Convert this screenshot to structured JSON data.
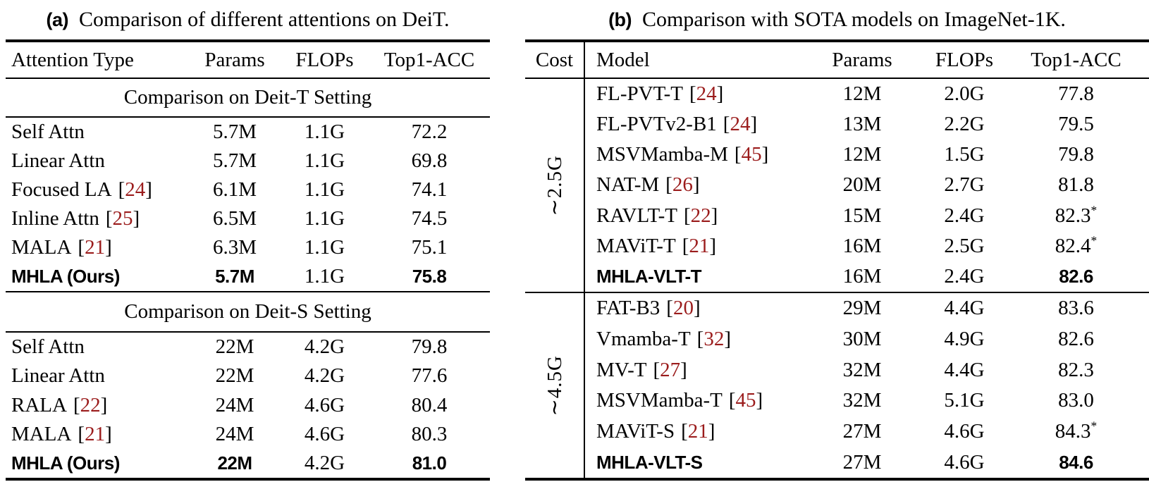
{
  "page": {
    "background": "#ffffff",
    "text_color": "#000000",
    "citation_color": "#9b1c1c"
  },
  "table_a": {
    "label": "(a)",
    "caption": "Comparison of different attentions on DeiT.",
    "columns": [
      "Attention Type",
      "Params",
      "FLOPs",
      "Top1-ACC"
    ],
    "sections": [
      {
        "title": "Comparison on Deit-T Setting",
        "rows": [
          {
            "name": "Self Attn",
            "params": "5.7M",
            "flops": "1.1G",
            "acc": "72.2"
          },
          {
            "name": "Linear Attn",
            "params": "5.7M",
            "flops": "1.1G",
            "acc": "69.8"
          },
          {
            "name": "Focused LA",
            "br_l": "[",
            "cite": "24",
            "br_r": "]",
            "params": "6.1M",
            "flops": "1.1G",
            "acc": "74.1"
          },
          {
            "name": "Inline Attn",
            "br_l": "[",
            "cite": "25",
            "br_r": "]",
            "params": "6.5M",
            "flops": "1.1G",
            "acc": "74.5"
          },
          {
            "name": "MALA",
            "br_l": "[",
            "cite": "21",
            "br_r": "]",
            "params": "6.3M",
            "flops": "1.1G",
            "acc": "75.1"
          },
          {
            "name": "MHLA (Ours)",
            "params": "5.7M",
            "flops": "1.1G",
            "acc": "75.8",
            "emph": "npa"
          }
        ]
      },
      {
        "title": "Comparison on Deit-S Setting",
        "rows": [
          {
            "name": "Self Attn",
            "params": "22M",
            "flops": "4.2G",
            "acc": "79.8"
          },
          {
            "name": "Linear Attn",
            "params": "22M",
            "flops": "4.2G",
            "acc": "77.6"
          },
          {
            "name": "RALA",
            "br_l": "[",
            "cite": "22",
            "br_r": "]",
            "params": "24M",
            "flops": "4.6G",
            "acc": "80.4"
          },
          {
            "name": "MALA",
            "br_l": "[",
            "cite": "21",
            "br_r": "]",
            "params": "24M",
            "flops": "4.6G",
            "acc": "80.3"
          },
          {
            "name": "MHLA (Ours)",
            "params": "22M",
            "flops": "4.2G",
            "acc": "81.0",
            "emph": "npa"
          }
        ]
      }
    ]
  },
  "table_b": {
    "label": "(b)",
    "caption": "Comparison with SOTA models on ImageNet-1K.",
    "columns": [
      "Cost",
      "Model",
      "Params",
      "FLOPs",
      "Top1-ACC"
    ],
    "sections": [
      {
        "cost": "∼2.5G",
        "rows": [
          {
            "name": "FL-PVT-T",
            "br_l": "[",
            "cite": "24",
            "br_r": "]",
            "params": "12M",
            "flops": "2.0G",
            "acc": "77.8"
          },
          {
            "name": "FL-PVTv2-B1",
            "br_l": "[",
            "cite": "24",
            "br_r": "]",
            "params": "13M",
            "flops": "2.2G",
            "acc": "79.5"
          },
          {
            "name": "MSVMamba-M",
            "br_l": "[",
            "cite": "45",
            "br_r": "]",
            "params": "12M",
            "flops": "1.5G",
            "acc": "79.8"
          },
          {
            "name": "NAT-M",
            "br_l": "[",
            "cite": "26",
            "br_r": "]",
            "params": "20M",
            "flops": "2.7G",
            "acc": "81.8"
          },
          {
            "name": "RAVLT-T",
            "br_l": "[",
            "cite": "22",
            "br_r": "]",
            "params": "15M",
            "flops": "2.4G",
            "acc": "82.3",
            "acc_sup": "*"
          },
          {
            "name": "MAViT-T",
            "br_l": "[",
            "cite": "21",
            "br_r": "]",
            "params": "16M",
            "flops": "2.5G",
            "acc": "82.4",
            "acc_sup": "*"
          },
          {
            "name": "MHLA-VLT-T",
            "params": "16M",
            "flops": "2.4G",
            "acc": "82.6",
            "emph": "na"
          }
        ]
      },
      {
        "cost": "∼4.5G",
        "rows": [
          {
            "name": "FAT-B3",
            "br_l": "[",
            "cite": "20",
            "br_r": "]",
            "params": "29M",
            "flops": "4.4G",
            "acc": "83.6"
          },
          {
            "name": "Vmamba-T",
            "br_l": "[",
            "cite": "32",
            "br_r": "]",
            "params": "30M",
            "flops": "4.9G",
            "acc": "82.6"
          },
          {
            "name": "MV-T",
            "br_l": "[",
            "cite": "27",
            "br_r": "]",
            "params": "32M",
            "flops": "4.4G",
            "acc": "82.3"
          },
          {
            "name": "MSVMamba-T",
            "br_l": "[",
            "cite": "45",
            "br_r": "]",
            "params": "32M",
            "flops": "5.1G",
            "acc": "83.0"
          },
          {
            "name": "MAViT-S",
            "br_l": "[",
            "cite": "21",
            "br_r": "]",
            "params": "27M",
            "flops": "4.6G",
            "acc": "84.3",
            "acc_sup": "*"
          },
          {
            "name": "MHLA-VLT-S",
            "params": "27M",
            "flops": "4.6G",
            "acc": "84.6",
            "emph": "na"
          }
        ]
      }
    ]
  }
}
